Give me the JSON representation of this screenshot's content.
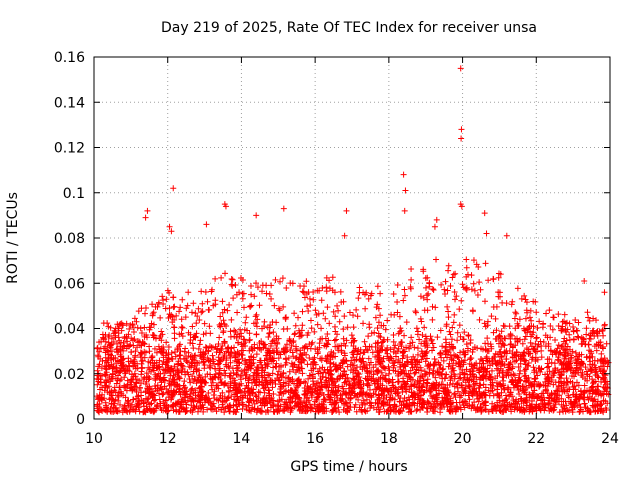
{
  "chart_data": {
    "type": "scatter",
    "title": "Day 219 of 2025, Rate Of TEC Index for receiver unsa",
    "xlabel": "GPS time / hours",
    "ylabel": "ROTI / TECUs",
    "xlim": [
      10,
      24
    ],
    "ylim": [
      0,
      0.16
    ],
    "xticks": [
      10,
      12,
      14,
      16,
      18,
      20,
      22,
      24
    ],
    "yticks": [
      0,
      0.02,
      0.04,
      0.06,
      0.08,
      0.1,
      0.12,
      0.14,
      0.16
    ],
    "ytick_labels": [
      "0",
      "0.02",
      "0.04",
      "0.06",
      "0.08",
      "0.1",
      "0.12",
      "0.14",
      "0.16"
    ],
    "grid": true,
    "marker": "+",
    "color": "#ff0000",
    "outliers": [
      {
        "x": 19.95,
        "y": 0.155
      },
      {
        "x": 19.97,
        "y": 0.128
      },
      {
        "x": 19.96,
        "y": 0.124
      },
      {
        "x": 12.15,
        "y": 0.102
      },
      {
        "x": 18.4,
        "y": 0.108
      },
      {
        "x": 18.45,
        "y": 0.101
      },
      {
        "x": 19.95,
        "y": 0.095
      },
      {
        "x": 19.98,
        "y": 0.094
      },
      {
        "x": 18.43,
        "y": 0.092
      },
      {
        "x": 11.45,
        "y": 0.092
      },
      {
        "x": 11.4,
        "y": 0.089
      },
      {
        "x": 13.55,
        "y": 0.095
      },
      {
        "x": 13.58,
        "y": 0.094
      },
      {
        "x": 15.15,
        "y": 0.093
      },
      {
        "x": 16.85,
        "y": 0.092
      },
      {
        "x": 14.4,
        "y": 0.09
      },
      {
        "x": 20.6,
        "y": 0.091
      },
      {
        "x": 20.65,
        "y": 0.082
      },
      {
        "x": 13.05,
        "y": 0.086
      },
      {
        "x": 12.05,
        "y": 0.085
      },
      {
        "x": 19.3,
        "y": 0.088
      },
      {
        "x": 19.25,
        "y": 0.085
      },
      {
        "x": 21.2,
        "y": 0.081
      },
      {
        "x": 12.1,
        "y": 0.083
      },
      {
        "x": 16.8,
        "y": 0.081
      },
      {
        "x": 23.3,
        "y": 0.061
      },
      {
        "x": 23.85,
        "y": 0.056
      }
    ],
    "bulk": {
      "n_points": 4200,
      "baseline_min": 0.003,
      "typical_max": 0.045,
      "envelope": [
        {
          "x": 10.0,
          "y": 0.035
        },
        {
          "x": 10.5,
          "y": 0.04
        },
        {
          "x": 11.0,
          "y": 0.045
        },
        {
          "x": 11.5,
          "y": 0.05
        },
        {
          "x": 12.0,
          "y": 0.058
        },
        {
          "x": 12.5,
          "y": 0.055
        },
        {
          "x": 13.0,
          "y": 0.058
        },
        {
          "x": 13.5,
          "y": 0.065
        },
        {
          "x": 14.0,
          "y": 0.062
        },
        {
          "x": 14.5,
          "y": 0.06
        },
        {
          "x": 15.0,
          "y": 0.062
        },
        {
          "x": 15.5,
          "y": 0.058
        },
        {
          "x": 16.0,
          "y": 0.06
        },
        {
          "x": 16.5,
          "y": 0.063
        },
        {
          "x": 17.0,
          "y": 0.062
        },
        {
          "x": 17.5,
          "y": 0.058
        },
        {
          "x": 18.0,
          "y": 0.058
        },
        {
          "x": 18.5,
          "y": 0.062
        },
        {
          "x": 19.0,
          "y": 0.068
        },
        {
          "x": 19.5,
          "y": 0.068
        },
        {
          "x": 20.0,
          "y": 0.07
        },
        {
          "x": 20.5,
          "y": 0.068
        },
        {
          "x": 21.0,
          "y": 0.065
        },
        {
          "x": 21.5,
          "y": 0.058
        },
        {
          "x": 22.0,
          "y": 0.052
        },
        {
          "x": 22.5,
          "y": 0.048
        },
        {
          "x": 23.0,
          "y": 0.045
        },
        {
          "x": 23.5,
          "y": 0.045
        },
        {
          "x": 24.0,
          "y": 0.04
        }
      ]
    }
  }
}
